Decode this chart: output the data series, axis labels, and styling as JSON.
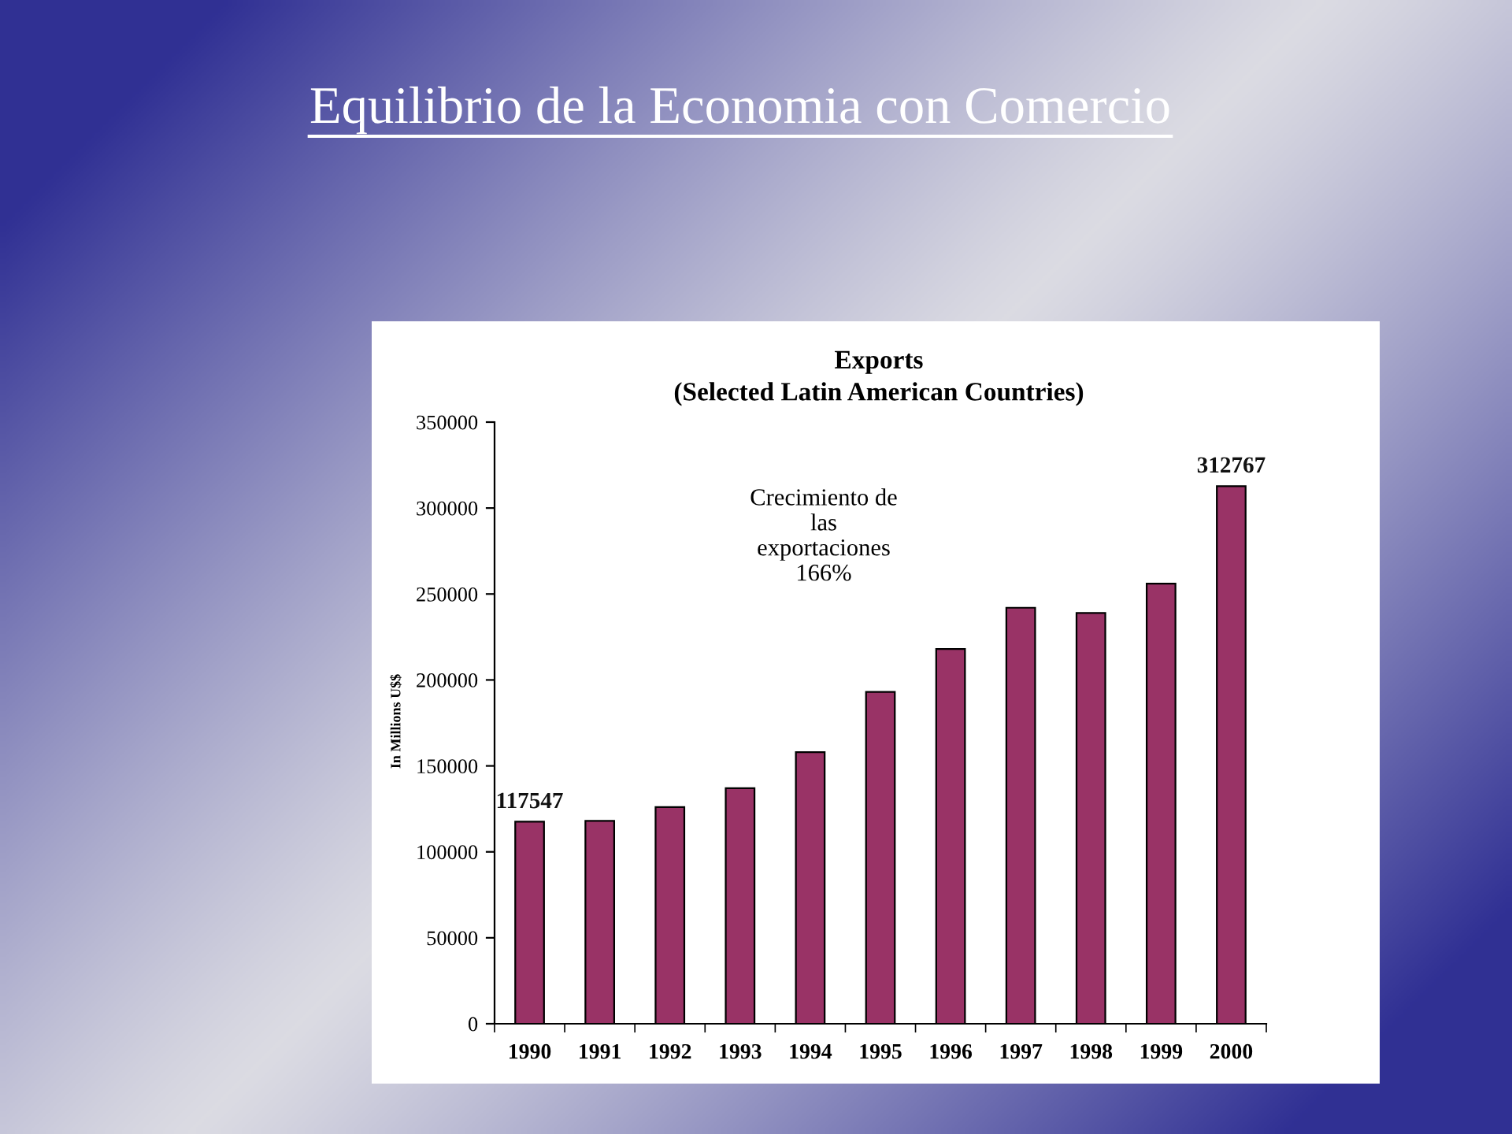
{
  "chart_data": {
    "type": "bar",
    "title": "Equilibrio de la Economia con Comercio",
    "subtitle": "Exports\n(Selected Latin American Countries)",
    "ylabel": "In Millions U$$",
    "categories": [
      "1990",
      "1991",
      "1992",
      "1993",
      "1994",
      "1995",
      "1996",
      "1997",
      "1998",
      "1999",
      "2000"
    ],
    "values": [
      117547,
      118000,
      126000,
      137000,
      158000,
      193000,
      218000,
      242000,
      239000,
      256000,
      312767
    ],
    "value_labels": [
      "117547",
      null,
      null,
      null,
      null,
      null,
      null,
      null,
      null,
      null,
      "312767"
    ],
    "color": "#993366",
    "ylim": [
      0,
      350000
    ],
    "yticks": [
      0,
      50000,
      100000,
      150000,
      200000,
      250000,
      300000,
      350000
    ],
    "grid": false,
    "annotations": [
      "Crecimiento de\nlas\nexportaciones\n166%"
    ]
  }
}
